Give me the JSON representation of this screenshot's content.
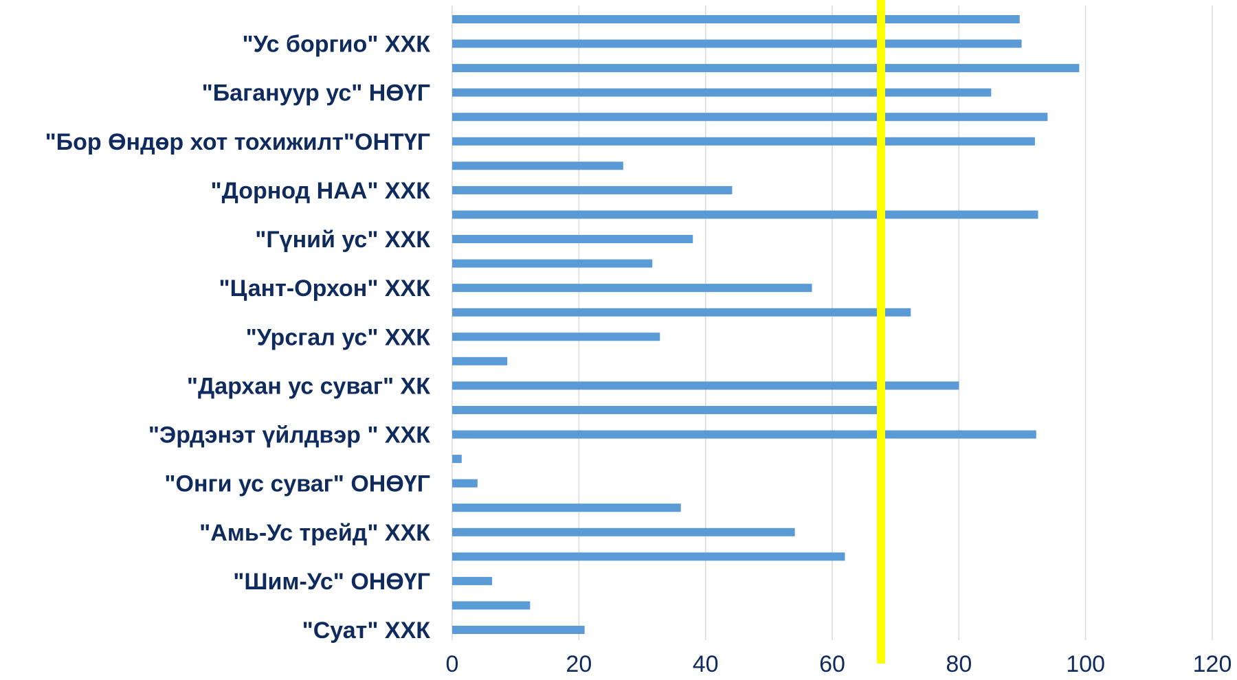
{
  "chart_data": {
    "type": "bar",
    "orientation": "horizontal",
    "title": "",
    "xlabel": "",
    "ylabel": "",
    "xlim": [
      0,
      120
    ],
    "x_ticks": [
      0,
      20,
      40,
      60,
      80,
      100,
      120
    ],
    "grid": "vertical",
    "legend": "none",
    "categories": [
      "",
      "\"Ус боргио\" ХХК",
      "",
      "\"Багануур ус\" НӨҮГ",
      "",
      "\"Бор Өндөр хот тохижилт\"ОНТҮГ",
      "",
      "\"Дорнод НАА\" ХХК",
      "",
      "\"Гүний ус\" ХХК",
      "",
      "\"Цант-Орхон\" ХХК",
      "",
      "\"Урсгал ус\" ХХК",
      "",
      "\"Дархан ус суваг\" ХК",
      "",
      "\"Эрдэнэт үйлдвэр \" ХХК",
      "",
      "\"Онги ус суваг\" ОНӨҮГ",
      "",
      "\"Амь-Ус трейд\" ХХК",
      "",
      "\"Шим-Ус\" ОНӨҮГ",
      "",
      "\"Суат\" ХХК"
    ],
    "values": [
      89.6,
      89.9,
      99,
      85.1,
      94,
      92,
      27,
      44.2,
      92.5,
      38,
      31.6,
      56.8,
      72.4,
      32.8,
      8.7,
      80,
      68.3,
      92.2,
      1.5,
      4,
      36.1,
      54.1,
      62,
      6.3,
      12.3,
      20.9
    ],
    "bar_color": "#5b9bd5",
    "reference_line": {
      "x": 67.7,
      "color": "#ffff00"
    },
    "label_color": "#0f2a5c"
  }
}
